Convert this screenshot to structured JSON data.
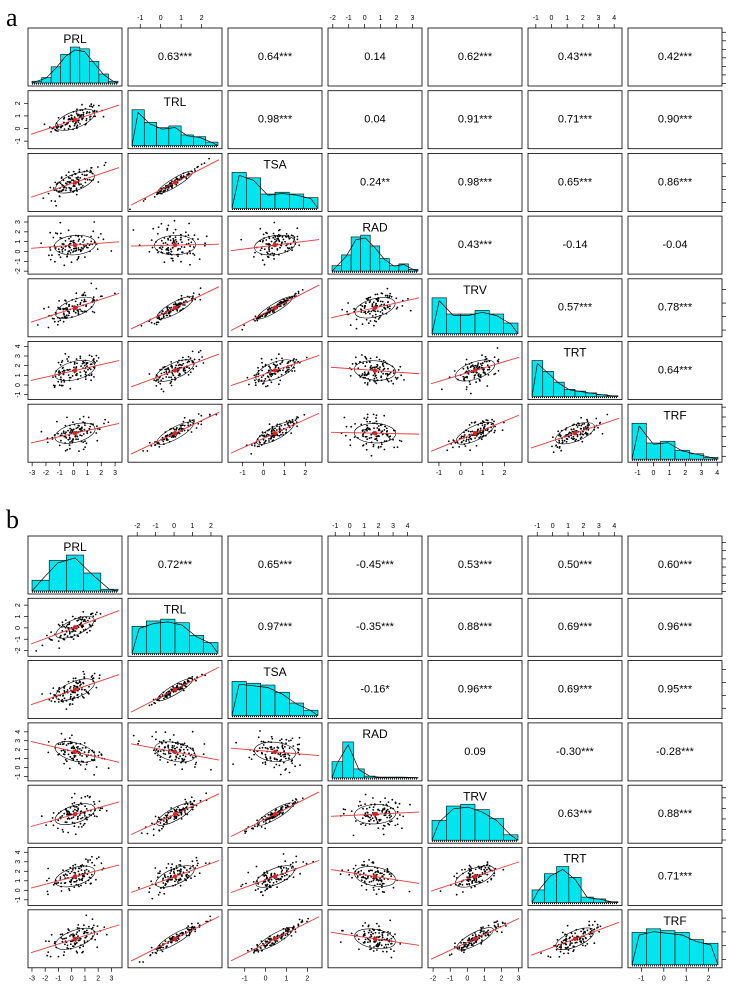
{
  "panels": [
    {
      "label": "a",
      "variables": [
        "PRL",
        "TRL",
        "TSA",
        "RAD",
        "TRV",
        "TRT",
        "TRF"
      ],
      "correlations": [
        "0.63***",
        "0.64***",
        "0.14",
        "0.62***",
        "0.43***",
        "0.42***",
        "0.98***",
        "0.04",
        "0.91***",
        "0.71***",
        "0.90***",
        "0.24**",
        "0.98***",
        "0.65***",
        "0.86***",
        "0.43***",
        "-0.14",
        "-0.04",
        "0.57***",
        "0.78***",
        "0.64***"
      ],
      "axes": [
        {
          "lim": [
            -3.3,
            3.5
          ],
          "ticks": [
            -3,
            -2,
            -1,
            0,
            1,
            2,
            3
          ]
        },
        {
          "lim": [
            -1.6,
            3
          ],
          "ticks": [
            -1,
            0,
            1,
            2
          ]
        },
        {
          "lim": [
            -1.7,
            2.8
          ],
          "ticks": [
            -1,
            0,
            1,
            2
          ]
        },
        {
          "lim": [
            -2.3,
            3.6
          ],
          "ticks": [
            -2,
            -1,
            0,
            1,
            2,
            3
          ]
        },
        {
          "lim": [
            -1.5,
            2.8
          ],
          "ticks": [
            -1,
            0,
            1,
            2
          ]
        },
        {
          "lim": [
            -1.5,
            4.5
          ],
          "ticks": [
            -1,
            0,
            1,
            2,
            3,
            4
          ]
        },
        {
          "lim": [
            -1.6,
            4.3
          ],
          "ticks": [
            -1,
            0,
            1,
            2,
            3,
            4
          ]
        }
      ],
      "hist": [
        [
          0.05,
          0.15,
          0.45,
          0.8,
          1,
          0.95,
          0.6,
          0.25,
          0.05
        ],
        [
          1,
          0.65,
          0.5,
          0.55,
          0.3,
          0.25,
          0.1
        ],
        [
          1,
          0.85,
          0.4,
          0.45,
          0.4,
          0.3
        ],
        [
          0.15,
          0.45,
          0.95,
          1,
          0.7,
          0.35,
          0.15,
          0.2,
          0.05
        ],
        [
          1,
          0.55,
          0.55,
          0.65,
          0.55,
          0.3
        ],
        [
          1,
          0.7,
          0.4,
          0.2,
          0.15,
          0.1,
          0.05,
          0.02
        ],
        [
          1,
          0.45,
          0.5,
          0.25,
          0.15,
          0.05
        ]
      ]
    },
    {
      "label": "b",
      "variables": [
        "PRL",
        "TRL",
        "TSA",
        "RAD",
        "TRV",
        "TRT",
        "TRF"
      ],
      "correlations": [
        "0.72***",
        "0.65***",
        "-0.45***",
        "0.53***",
        "0.50***",
        "0.60***",
        "0.97***",
        "-0.35***",
        "0.88***",
        "0.69***",
        "0.96***",
        "-0.16*",
        "0.96***",
        "0.69***",
        "0.95***",
        "0.09",
        "-0.30***",
        "-0.28***",
        "0.63***",
        "0.88***",
        "0.71***"
      ],
      "axes": [
        {
          "lim": [
            -3.3,
            3.8
          ],
          "ticks": [
            -3,
            -2,
            -1,
            0,
            1,
            2,
            3
          ]
        },
        {
          "lim": [
            -2.5,
            2.6
          ],
          "ticks": [
            -2,
            -1,
            0,
            1,
            2
          ]
        },
        {
          "lim": [
            -1.8,
            2.7
          ],
          "ticks": [
            -1,
            0,
            1,
            2
          ]
        },
        {
          "lim": [
            -1.5,
            5
          ],
          "ticks": [
            -1,
            0,
            1,
            2,
            3,
            4
          ]
        },
        {
          "lim": [
            -2.3,
            3.2
          ],
          "ticks": [
            -2,
            -1,
            0,
            1,
            2,
            3
          ]
        },
        {
          "lim": [
            -1.6,
            4.5
          ],
          "ticks": [
            -1,
            0,
            1,
            2,
            3,
            4
          ]
        },
        {
          "lim": [
            -1.6,
            2.6
          ],
          "ticks": [
            -1,
            0,
            1,
            2
          ]
        }
      ],
      "hist": [
        [
          0.3,
          0.85,
          1,
          0.5,
          0.05
        ],
        [
          0.75,
          0.9,
          0.95,
          0.85,
          0.5,
          0.3
        ],
        [
          0.95,
          0.9,
          0.85,
          0.65,
          0.35,
          0.15
        ],
        [
          0.45,
          1,
          0.25,
          0.05,
          0.02,
          0.02,
          0.02,
          0.01
        ],
        [
          0.55,
          0.95,
          1,
          0.85,
          0.6,
          0.15
        ],
        [
          0.35,
          0.8,
          1,
          0.7,
          0.15,
          0.1,
          0.02
        ],
        [
          0.9,
          1,
          0.95,
          0.9,
          0.7,
          0.6
        ]
      ]
    }
  ]
}
